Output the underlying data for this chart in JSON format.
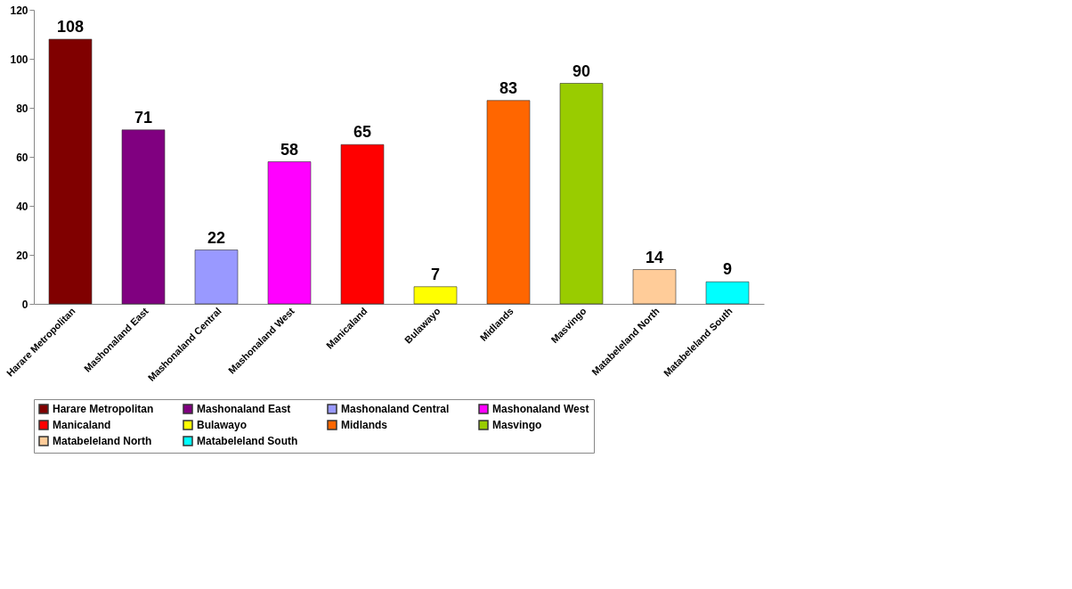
{
  "chart_data": {
    "type": "bar",
    "categories": [
      "Harare Metropolitan",
      "Mashonaland East",
      "Mashonaland Central",
      "Mashonaland West",
      "Manicaland",
      "Bulawayo",
      "Midlands",
      "Masvingo",
      "Matabeleland North",
      "Matabeleland South"
    ],
    "series": [
      {
        "name": "Harare Metropolitan",
        "color": "#800000",
        "values": [
          108,
          null,
          null,
          null,
          null,
          null,
          null,
          null,
          null,
          null
        ]
      },
      {
        "name": "Mashonaland East",
        "color": "#800080",
        "values": [
          null,
          71,
          null,
          null,
          null,
          null,
          null,
          null,
          null,
          null
        ]
      },
      {
        "name": "Mashonaland Central",
        "color": "#9999ff",
        "values": [
          null,
          null,
          22,
          null,
          null,
          null,
          null,
          null,
          null,
          null
        ]
      },
      {
        "name": "Mashonaland West",
        "color": "#ff00ff",
        "values": [
          null,
          null,
          null,
          58,
          null,
          null,
          null,
          null,
          null,
          null
        ]
      },
      {
        "name": "Manicaland",
        "color": "#ff0000",
        "values": [
          null,
          null,
          null,
          null,
          65,
          null,
          null,
          null,
          null,
          null
        ]
      },
      {
        "name": "Bulawayo",
        "color": "#ffff00",
        "values": [
          null,
          null,
          null,
          null,
          null,
          7,
          null,
          null,
          null,
          null
        ]
      },
      {
        "name": "Midlands",
        "color": "#ff6600",
        "values": [
          null,
          null,
          null,
          null,
          null,
          null,
          83,
          null,
          null,
          null
        ]
      },
      {
        "name": "Masvingo",
        "color": "#99cc00",
        "values": [
          null,
          null,
          null,
          null,
          null,
          null,
          null,
          90,
          null,
          null
        ]
      },
      {
        "name": "Matabeleland North",
        "color": "#ffcc99",
        "values": [
          null,
          null,
          null,
          null,
          null,
          null,
          null,
          null,
          14,
          null
        ]
      },
      {
        "name": "Matabeleland South",
        "color": "#00ffff",
        "values": [
          null,
          null,
          null,
          null,
          null,
          null,
          null,
          null,
          null,
          9
        ]
      }
    ],
    "ylim": [
      0,
      120
    ],
    "yticks": [
      0,
      20,
      40,
      60,
      80,
      100,
      120
    ],
    "data_labels": true,
    "grid": false,
    "legend": "bottom"
  }
}
